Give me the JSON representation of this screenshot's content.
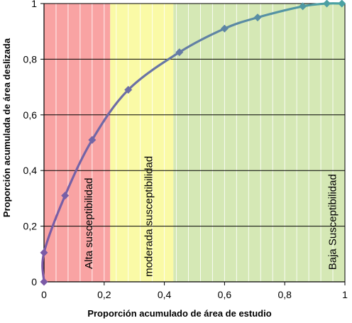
{
  "chart_data": {
    "type": "line",
    "xlabel": "Proporción acumulado  de área de estudio",
    "ylabel": "Proporción  acumulada  de área deslizada",
    "xlim": [
      0,
      1
    ],
    "ylim": [
      0,
      1
    ],
    "x_ticks": [
      "0",
      "0,2",
      "0,4",
      "0,6",
      "0,8",
      "1"
    ],
    "y_ticks": [
      "0",
      "0,2",
      "0,4",
      "0,6",
      "0,8",
      "1"
    ],
    "grid": true,
    "zones": [
      {
        "label": "Alta susceptibilidad",
        "from": 0,
        "to": 0.22,
        "color": "#f9a3a3"
      },
      {
        "label": "moderada susceptibilidad",
        "from": 0.22,
        "to": 0.43,
        "color": "#fafaa6"
      },
      {
        "label": "Baja Susceptibilidad",
        "from": 0.43,
        "to": 1,
        "color": "#d5e8b5"
      }
    ],
    "series": [
      {
        "color_start": "#7b5aa6",
        "color_end": "#4aa3a3",
        "marker": "diamond",
        "points": [
          {
            "x": 0,
            "y": 0
          },
          {
            "x": 0,
            "y": 0.105
          },
          {
            "x": 0.07,
            "y": 0.31
          },
          {
            "x": 0.16,
            "y": 0.51
          },
          {
            "x": 0.28,
            "y": 0.69
          },
          {
            "x": 0.45,
            "y": 0.825
          },
          {
            "x": 0.6,
            "y": 0.91
          },
          {
            "x": 0.71,
            "y": 0.95
          },
          {
            "x": 0.86,
            "y": 0.99
          },
          {
            "x": 0.94,
            "y": 1
          },
          {
            "x": 0.99,
            "y": 1
          }
        ]
      }
    ]
  }
}
